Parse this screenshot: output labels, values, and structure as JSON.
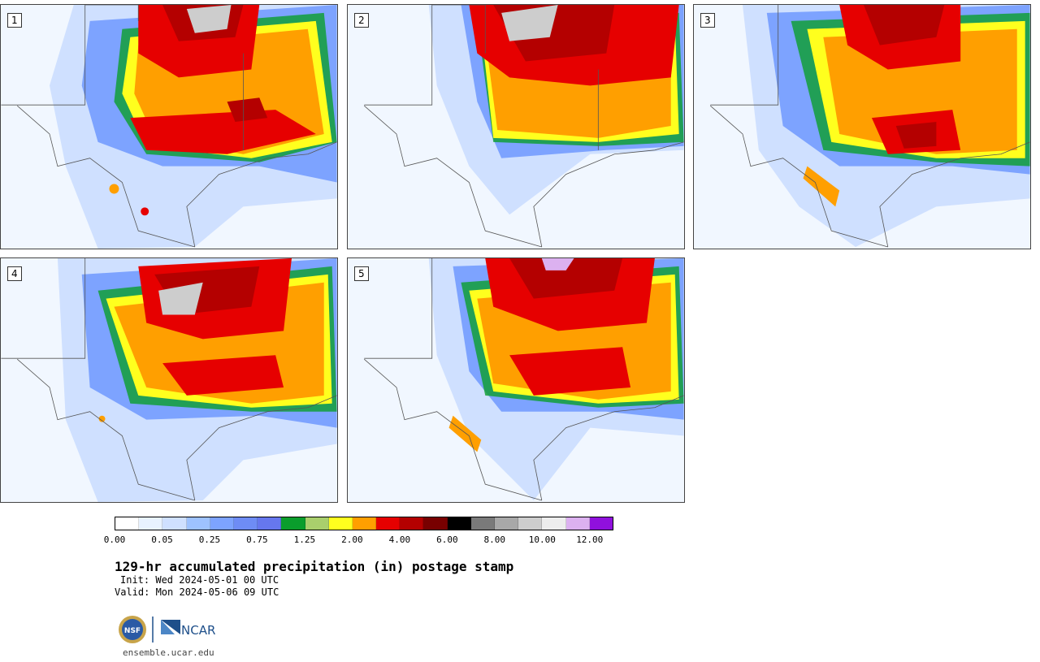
{
  "panels": [
    {
      "label": "1"
    },
    {
      "label": "2"
    },
    {
      "label": "3"
    },
    {
      "label": "4"
    },
    {
      "label": "5"
    }
  ],
  "colorbar": {
    "colors": [
      "#ffffff",
      "#e8f2ff",
      "#cfe0ff",
      "#9ec2ff",
      "#7da3ff",
      "#6e8cf5",
      "#6677ee",
      "#0a9e2c",
      "#a9cf6c",
      "#ffff1e",
      "#ff9f00",
      "#e60000",
      "#b40000",
      "#780000",
      "#000000",
      "#7a7a7a",
      "#a8a8a8",
      "#cdcdcd",
      "#ededed",
      "#dcb1f0",
      "#9010dd"
    ],
    "tick_labels": [
      "0.00",
      "0.05",
      "0.25",
      "0.75",
      "1.25",
      "2.00",
      "4.00",
      "6.00",
      "8.00",
      "10.00",
      "12.00"
    ]
  },
  "title": "129-hr accumulated precipitation (in) postage stamp",
  "init": "Init: Wed 2024-05-01 00 UTC",
  "valid": "Valid: Mon 2024-05-06 09 UTC",
  "logos": {
    "nsf": "NSF",
    "ncar": "NCAR"
  },
  "site": "ensemble.ucar.edu"
}
